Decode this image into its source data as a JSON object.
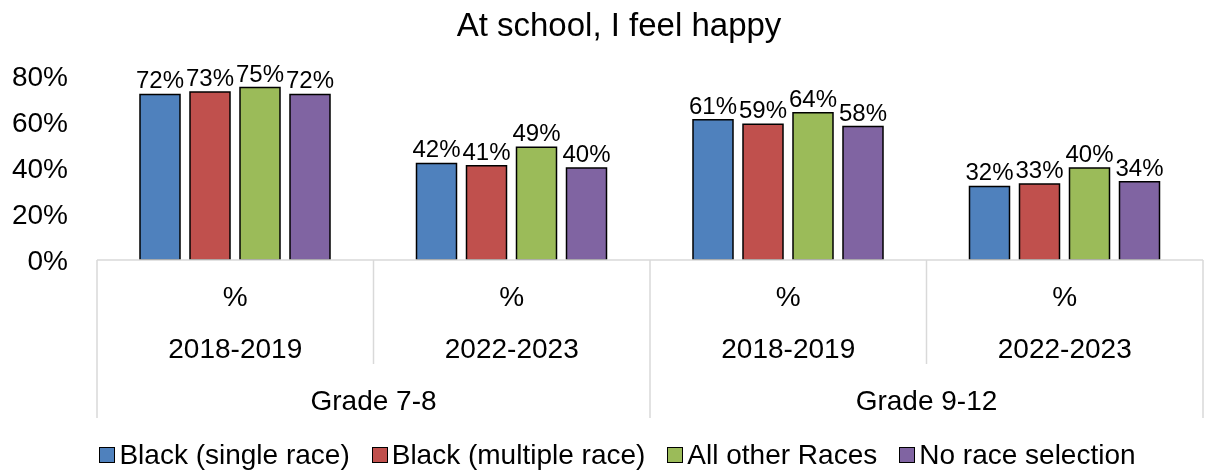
{
  "chart_data": {
    "type": "bar",
    "title": "At school, I feel happy",
    "categories": [
      "%",
      "%",
      "%",
      "%"
    ],
    "annotations": [
      "2018-2019",
      "2022-2023",
      "2018-2019",
      "2022-2023",
      "Grade 7-8",
      "Grade 9-12"
    ],
    "series": [
      {
        "name": "Black (single race)",
        "color": "#4f81bd",
        "values": [
          72,
          42,
          61,
          32
        ],
        "value_labels": [
          "72%",
          "42%",
          "61%",
          "32%"
        ]
      },
      {
        "name": "Black (multiple race)",
        "color": "#c0504d",
        "values": [
          73,
          41,
          59,
          33
        ],
        "value_labels": [
          "73%",
          "41%",
          "59%",
          "33%"
        ]
      },
      {
        "name": "All other Races",
        "color": "#9bbb59",
        "values": [
          75,
          49,
          64,
          40
        ],
        "value_labels": [
          "75%",
          "49%",
          "64%",
          "40%"
        ]
      },
      {
        "name": "No race selection",
        "color": "#8064a2",
        "values": [
          72,
          40,
          58,
          34
        ],
        "value_labels": [
          "72%",
          "40%",
          "58%",
          "34%"
        ]
      }
    ],
    "ylim": [
      0,
      80
    ],
    "yticks": [
      {
        "value": 0,
        "label": "0%"
      },
      {
        "value": 20,
        "label": "20%"
      },
      {
        "value": 40,
        "label": "40%"
      },
      {
        "value": 60,
        "label": "60%"
      },
      {
        "value": 80,
        "label": "80%"
      }
    ],
    "legend": "bottom"
  }
}
